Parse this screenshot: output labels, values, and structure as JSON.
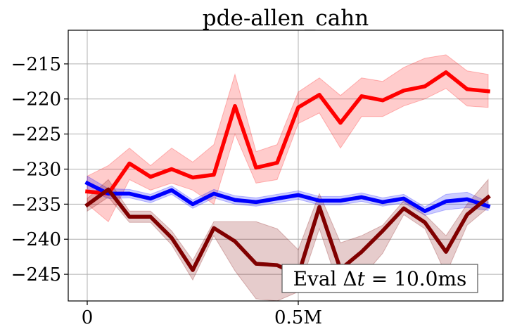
{
  "chart_data": {
    "type": "line",
    "title": "pde-allen_cahn",
    "xlabel": "",
    "ylabel": "",
    "xlim": [
      -0.045,
      0.985
    ],
    "ylim": [
      -248.8,
      -210.2
    ],
    "grid": true,
    "x_ticks": [
      {
        "value": 0,
        "label": "0"
      },
      {
        "value": 0.5,
        "label": "0.5M"
      }
    ],
    "y_ticks": [
      {
        "value": -215,
        "label": "−215"
      },
      {
        "value": -220,
        "label": "−220"
      },
      {
        "value": -225,
        "label": "−225"
      },
      {
        "value": -230,
        "label": "−230"
      },
      {
        "value": -235,
        "label": "−235"
      },
      {
        "value": -240,
        "label": "−240"
      },
      {
        "value": -245,
        "label": "−245"
      }
    ],
    "annotation": "Eval Δt = 10.0ms",
    "annotation_parts": {
      "prefix": "Eval Δ",
      "italic": "t",
      "suffix": " = 10.0ms"
    },
    "annotation_position": "bottom-right",
    "x": [
      0,
      0.05,
      0.1,
      0.15,
      0.2,
      0.25,
      0.3,
      0.35,
      0.4,
      0.45,
      0.5,
      0.55,
      0.6,
      0.65,
      0.7,
      0.75,
      0.8,
      0.85,
      0.9,
      0.95
    ],
    "series": [
      {
        "color": "#ff0000",
        "values": [
          -233.2,
          -233.5,
          -229.2,
          -231.1,
          -230.0,
          -231.2,
          -230.8,
          -221.0,
          -229.8,
          -229.1,
          -221.2,
          -219.4,
          -223.4,
          -219.6,
          -220.2,
          -218.8,
          -218.2,
          -216.2,
          -218.6,
          -218.9
        ],
        "lower": [
          -235.0,
          -237.5,
          -231.5,
          -233.0,
          -232.0,
          -233.0,
          -235.0,
          -225.0,
          -232.0,
          -231.5,
          -223.5,
          -222.0,
          -227.0,
          -222.5,
          -222.5,
          -221.0,
          -220.0,
          -218.5,
          -221.0,
          -221.2
        ],
        "upper": [
          -231.0,
          -229.5,
          -227.0,
          -229.5,
          -227.0,
          -229.0,
          -226.5,
          -216.5,
          -227.5,
          -226.5,
          -219.0,
          -217.0,
          -219.5,
          -217.0,
          -217.5,
          -215.5,
          -214.2,
          -213.7,
          -216.0,
          -216.5
        ]
      },
      {
        "color": "#0000ff",
        "values": [
          -232.0,
          -233.5,
          -233.5,
          -234.2,
          -233.0,
          -235.0,
          -233.5,
          -234.4,
          -234.7,
          -234.2,
          -233.7,
          -234.5,
          -234.5,
          -234.0,
          -234.7,
          -234.2,
          -236.0,
          -234.6,
          -234.3,
          -235.3
        ],
        "lower": [
          -232.8,
          -234.2,
          -234.1,
          -234.8,
          -233.6,
          -235.6,
          -234.1,
          -235.0,
          -235.3,
          -234.8,
          -234.3,
          -235.1,
          -235.1,
          -234.6,
          -235.3,
          -234.8,
          -236.6,
          -235.8,
          -235.5,
          -235.9
        ],
        "upper": [
          -231.0,
          -232.8,
          -232.9,
          -233.6,
          -232.4,
          -234.4,
          -232.9,
          -233.8,
          -234.1,
          -233.6,
          -233.1,
          -233.9,
          -233.9,
          -233.4,
          -234.1,
          -233.6,
          -235.4,
          -233.6,
          -233.3,
          -234.7
        ]
      },
      {
        "color": "#800000",
        "values": [
          -235.1,
          -232.9,
          -236.8,
          -236.8,
          -239.8,
          -244.4,
          -238.4,
          -240.3,
          -243.5,
          -243.7,
          -245.1,
          -235.4,
          -244.3,
          -241.8,
          -238.8,
          -235.6,
          -237.6,
          -241.8,
          -236.5,
          -234.0
        ],
        "lower": [
          -236.0,
          -234.0,
          -237.6,
          -237.6,
          -240.8,
          -245.8,
          -239.5,
          -244.5,
          -248.5,
          -248.8,
          -247.5,
          -238.5,
          -247.5,
          -245.5,
          -242.0,
          -236.5,
          -238.5,
          -245.0,
          -238.0,
          -235.5
        ],
        "upper": [
          -234.2,
          -231.5,
          -236.0,
          -236.0,
          -238.8,
          -243.0,
          -237.5,
          -237.5,
          -237.5,
          -238.5,
          -241.5,
          -233.5,
          -240.5,
          -239.5,
          -238.0,
          -234.5,
          -236.5,
          -239.5,
          -235.0,
          -231.5
        ]
      }
    ]
  }
}
